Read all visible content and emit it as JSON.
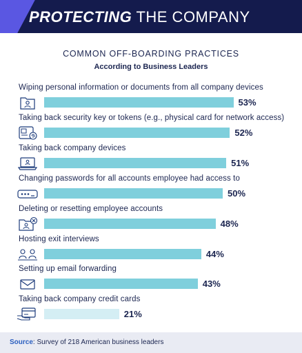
{
  "header": {
    "title_bold": "PROTECTING",
    "title_rest": " THE COMPANY"
  },
  "chart_data": {
    "type": "bar",
    "orientation": "horizontal",
    "title": "COMMON OFF-BOARDING PRACTICES",
    "subtitle": "According to Business Leaders",
    "categories": [
      "Wiping personal information or documents from all company devices",
      "Taking back security key or tokens (e.g., physical card for network access)",
      "Taking back company devices",
      "Changing passwords for all accounts employee had access to",
      "Deleting or resetting employee accounts",
      "Hosting exit interviews",
      "Setting up email forwarding",
      "Taking back company credit cards"
    ],
    "values": [
      53,
      52,
      51,
      50,
      48,
      44,
      43,
      21
    ],
    "value_labels": [
      "53%",
      "52%",
      "51%",
      "50%",
      "48%",
      "44%",
      "43%",
      "21%"
    ],
    "icons": [
      "folder-person-icon",
      "id-badge-fingerprint-icon",
      "laptop-icon",
      "password-field-icon",
      "folder-delete-icon",
      "interview-people-icon",
      "envelope-icon",
      "credit-card-hand-icon"
    ],
    "colors": {
      "bar": "#7fcfdc",
      "bar_light": "#d4eef4",
      "text": "#1b2550",
      "icon": "#1b3a7a"
    }
  },
  "footer": {
    "source_label": "Source",
    "source_text": ": Survey of 218 American business leaders"
  }
}
